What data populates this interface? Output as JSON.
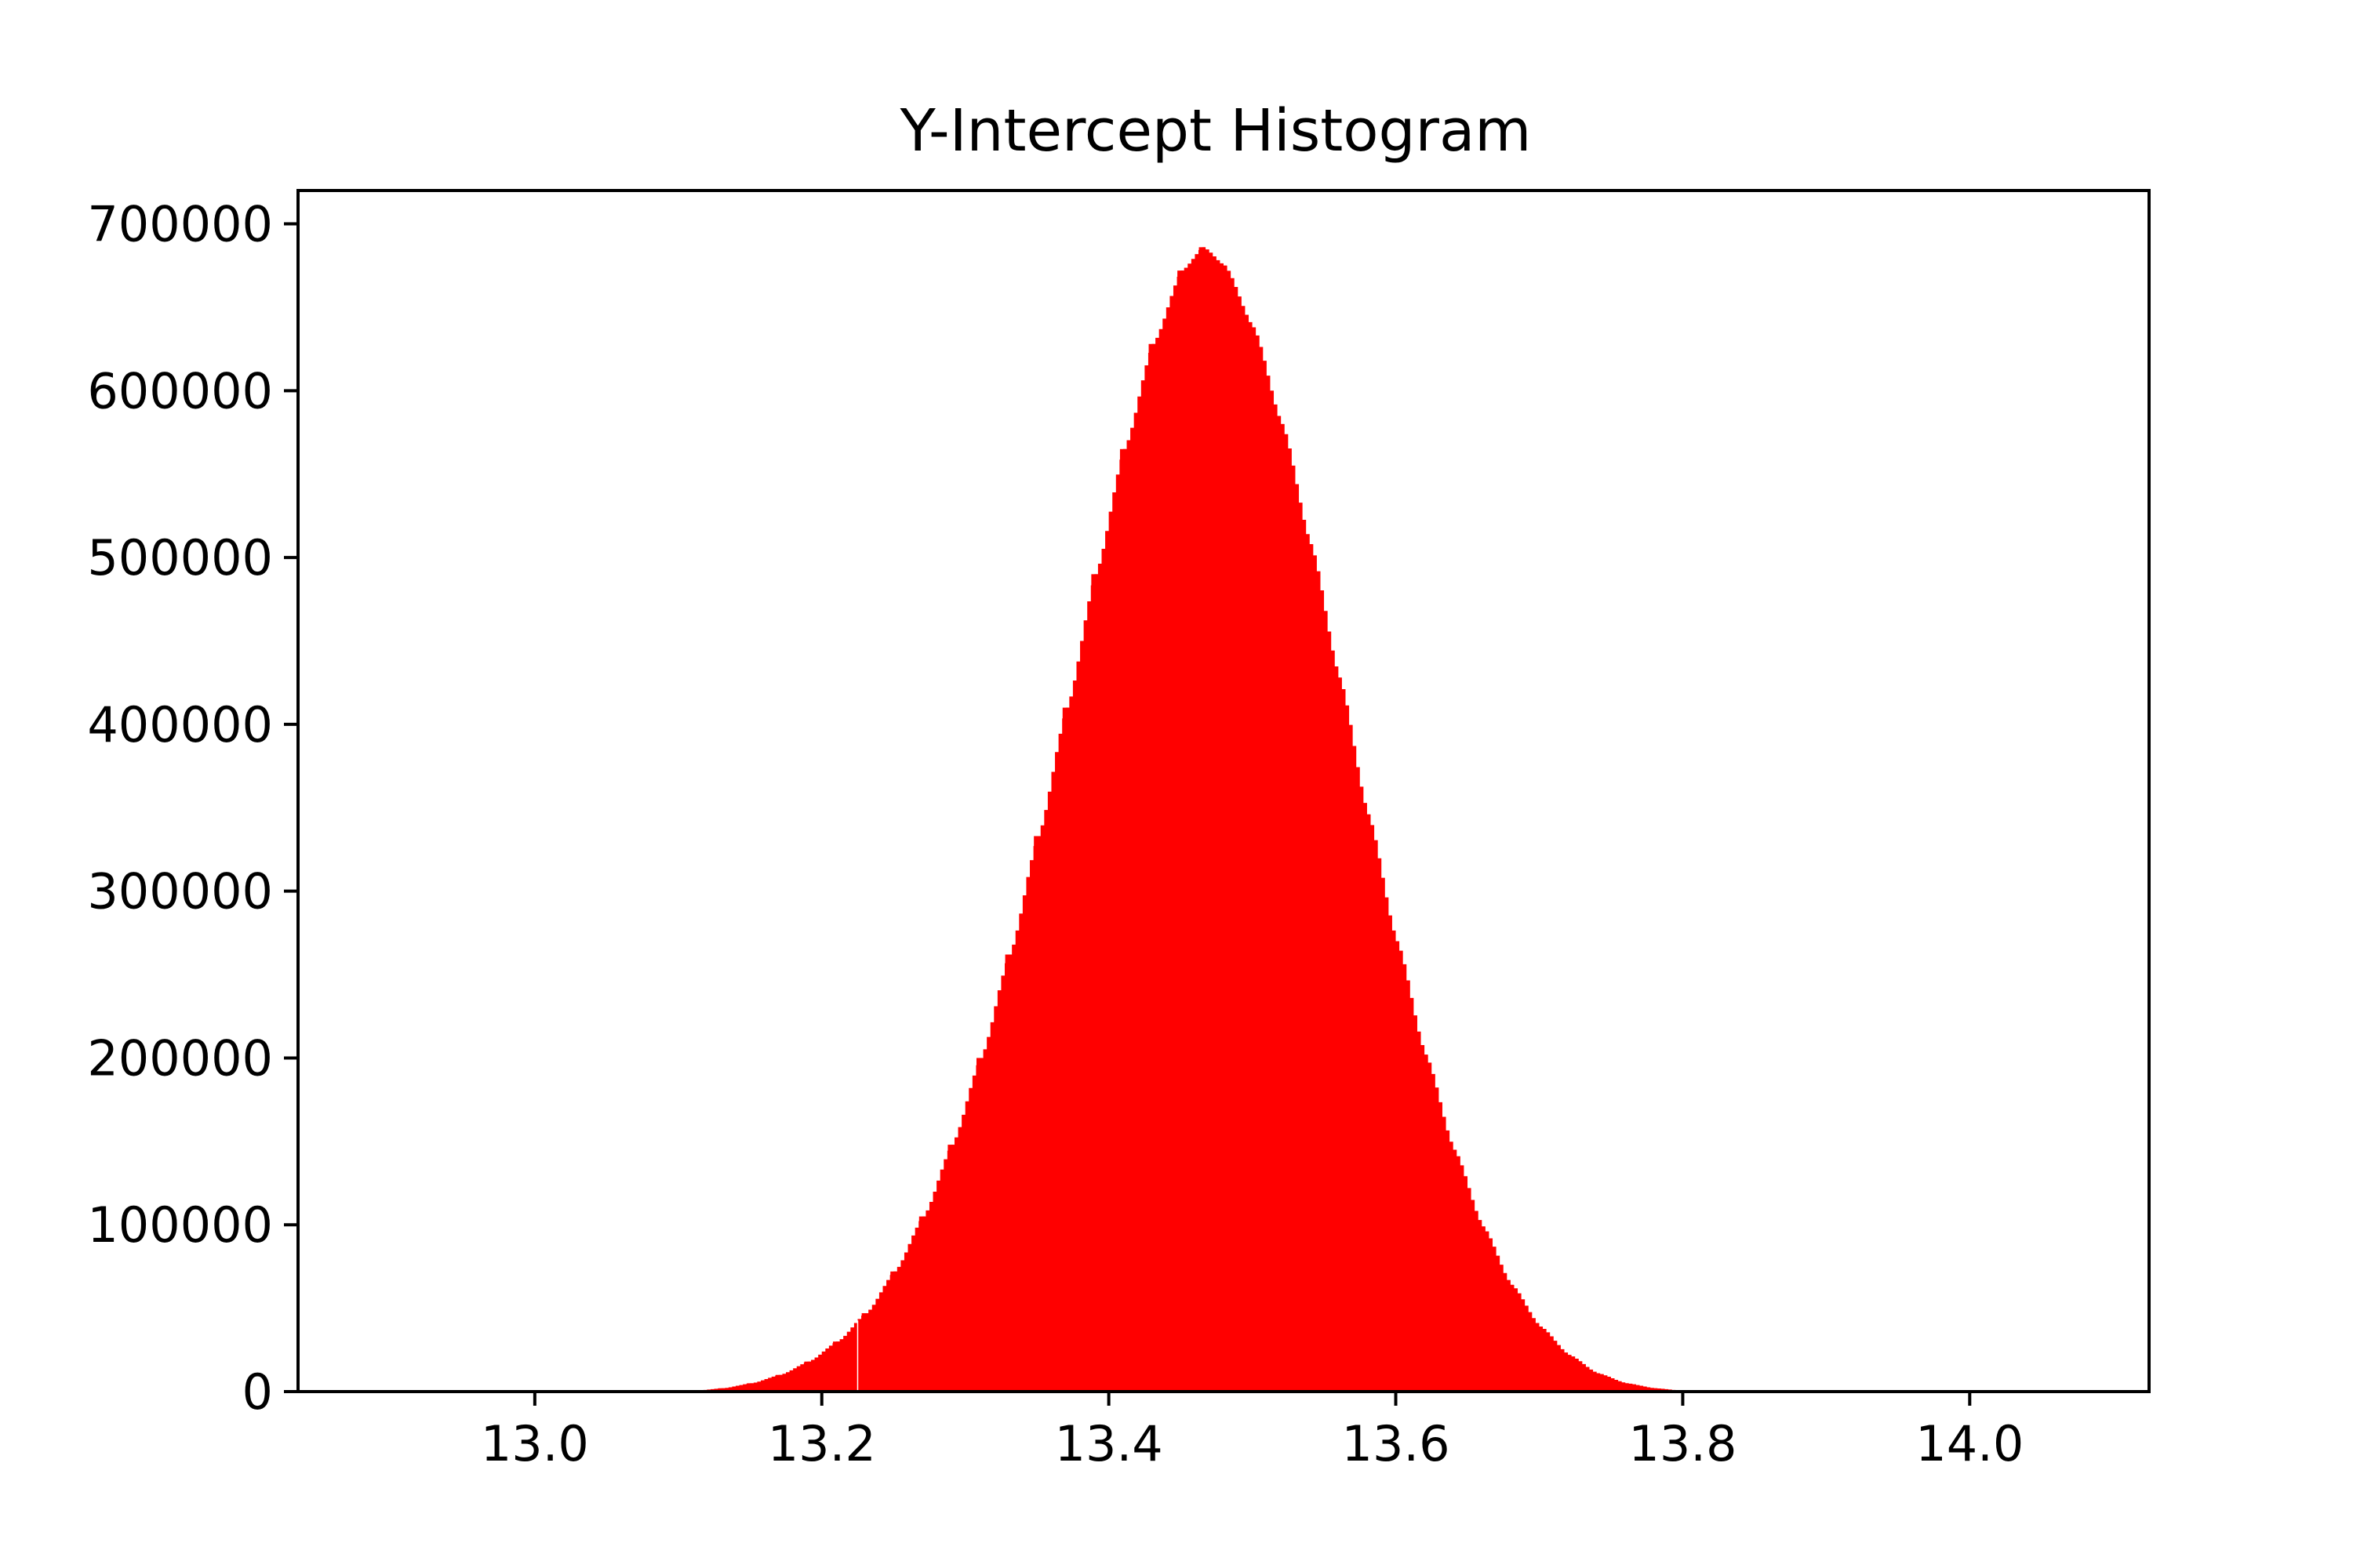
{
  "chart_data": {
    "type": "bar",
    "title": "Y-Intercept Histogram",
    "xlabel": "",
    "ylabel": "",
    "xlim": [
      12.835,
      14.125
    ],
    "ylim": [
      0,
      720000
    ],
    "x_ticks": [
      "13.0",
      "13.2",
      "13.4",
      "13.6",
      "13.8",
      "14.0"
    ],
    "x_tick_values": [
      13.0,
      13.2,
      13.4,
      13.6,
      13.8,
      14.0
    ],
    "y_ticks": [
      "0",
      "100000",
      "200000",
      "300000",
      "400000",
      "500000",
      "600000",
      "700000"
    ],
    "y_tick_values": [
      0,
      100000,
      200000,
      300000,
      400000,
      500000,
      600000,
      700000
    ],
    "grid": false,
    "legend": "none",
    "bar_color": "#ff0000",
    "bins": [
      {
        "x": 13.11,
        "y": 500
      },
      {
        "x": 13.13,
        "y": 2000
      },
      {
        "x": 13.15,
        "y": 5000
      },
      {
        "x": 13.17,
        "y": 10000
      },
      {
        "x": 13.19,
        "y": 18000
      },
      {
        "x": 13.21,
        "y": 30000
      },
      {
        "x": 13.23,
        "y": 47000
      },
      {
        "x": 13.25,
        "y": 72000
      },
      {
        "x": 13.27,
        "y": 105000
      },
      {
        "x": 13.29,
        "y": 148000
      },
      {
        "x": 13.31,
        "y": 200000
      },
      {
        "x": 13.33,
        "y": 262000
      },
      {
        "x": 13.35,
        "y": 333000
      },
      {
        "x": 13.37,
        "y": 410000
      },
      {
        "x": 13.39,
        "y": 490000
      },
      {
        "x": 13.41,
        "y": 565000
      },
      {
        "x": 13.43,
        "y": 628000
      },
      {
        "x": 13.45,
        "y": 672000
      },
      {
        "x": 13.465,
        "y": 686000
      },
      {
        "x": 13.48,
        "y": 675000
      },
      {
        "x": 13.5,
        "y": 638000
      },
      {
        "x": 13.52,
        "y": 580000
      },
      {
        "x": 13.54,
        "y": 508000
      },
      {
        "x": 13.56,
        "y": 428000
      },
      {
        "x": 13.58,
        "y": 346000
      },
      {
        "x": 13.6,
        "y": 270000
      },
      {
        "x": 13.62,
        "y": 202000
      },
      {
        "x": 13.64,
        "y": 145000
      },
      {
        "x": 13.66,
        "y": 99000
      },
      {
        "x": 13.68,
        "y": 64000
      },
      {
        "x": 13.7,
        "y": 39000
      },
      {
        "x": 13.72,
        "y": 22000
      },
      {
        "x": 13.74,
        "y": 11000
      },
      {
        "x": 13.76,
        "y": 5000
      },
      {
        "x": 13.78,
        "y": 2000
      },
      {
        "x": 13.8,
        "y": 500
      }
    ]
  }
}
